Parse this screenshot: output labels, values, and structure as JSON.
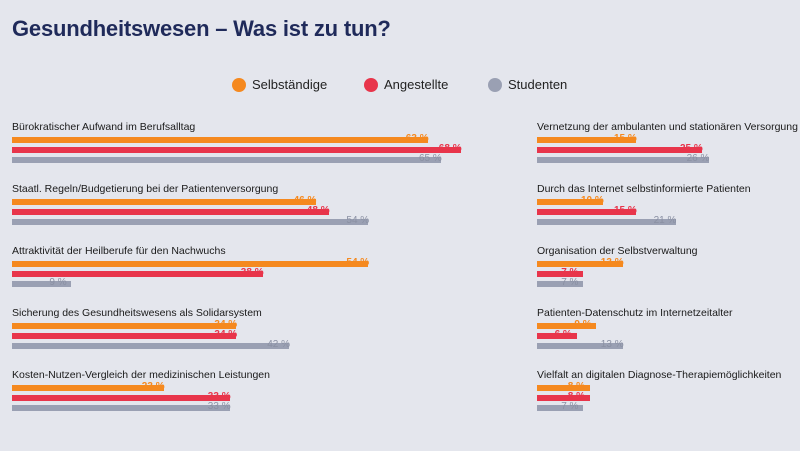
{
  "colors": {
    "title": "#1f2a5a",
    "Selbständige": "#f5891f",
    "Angestellte": "#e8354b",
    "Studenten": "#9aa0b3",
    "Studenten_text": "#8a90a3"
  },
  "chart_data": {
    "type": "bar",
    "orientation": "horizontal",
    "title": "Gesundheitswesen – Was ist zu tun?",
    "value_suffix": " %",
    "legend": {
      "placement": "top-center",
      "entries": [
        "Selbständige",
        "Angestellte",
        "Studenten"
      ]
    },
    "xlim": [
      0,
      100
    ],
    "grid": false,
    "series": [
      {
        "name": "Selbständige",
        "color": "#f5891f"
      },
      {
        "name": "Angestellte",
        "color": "#e8354b"
      },
      {
        "name": "Studenten",
        "color": "#9aa0b3"
      }
    ],
    "panels": [
      {
        "categories": [
          {
            "label": "Bürokratischer Aufwand im Berufsalltag",
            "values": [
              63,
              68,
              65
            ]
          },
          {
            "label": "Staatl. Regeln/Budgetierung bei der Patientenversorgung",
            "values": [
              46,
              48,
              54
            ]
          },
          {
            "label": "Attraktivität der Heilberufe für den Nachwuchs",
            "values": [
              54,
              38,
              9
            ]
          },
          {
            "label": "Sicherung des Gesundheitswesens als Solidarsystem",
            "values": [
              34,
              34,
              42
            ]
          },
          {
            "label": "Kosten-Nutzen-Vergleich der medizinischen Leistungen",
            "values": [
              23,
              33,
              33
            ]
          }
        ]
      },
      {
        "categories": [
          {
            "label": "Vernetzung der ambulanten und stationären Versorgung",
            "values": [
              15,
              25,
              26
            ]
          },
          {
            "label": "Durch das Internet selbstinformierte Patienten",
            "values": [
              10,
              15,
              21
            ]
          },
          {
            "label": "Organisation der Selbstverwaltung",
            "values": [
              13,
              7,
              7
            ]
          },
          {
            "label": "Patienten-Datenschutz im Internetzeitalter",
            "values": [
              9,
              6,
              13
            ]
          },
          {
            "label": "Vielfalt an digitalen Diagnose-Therapiemöglichkeiten",
            "values": [
              8,
              8,
              7
            ]
          }
        ]
      }
    ]
  }
}
